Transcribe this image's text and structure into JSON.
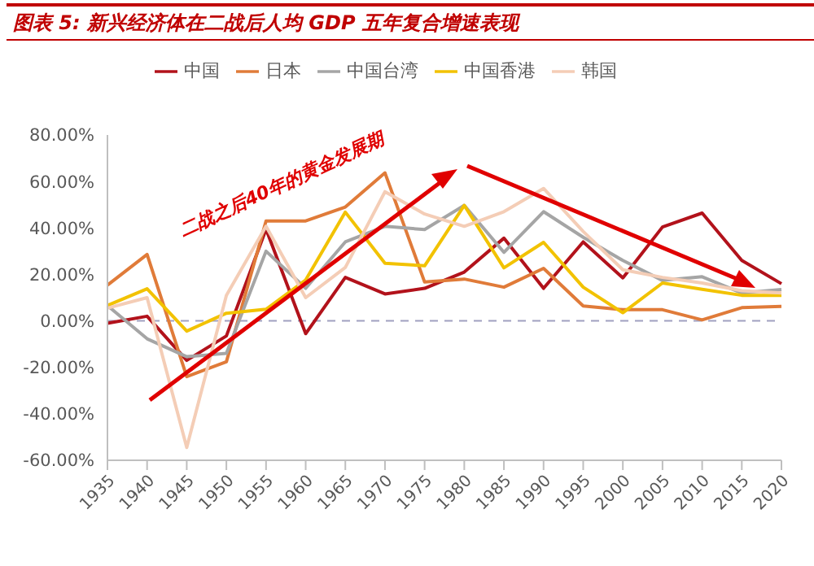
{
  "chart_data": {
    "type": "line",
    "title": "图表 5:  新兴经济体在二战后人均 GDP 五年复合增速表现",
    "categories": [
      "1935",
      "1940",
      "1945",
      "1950",
      "1955",
      "1960",
      "1965",
      "1970",
      "1975",
      "1980",
      "1985",
      "1990",
      "1995",
      "2000",
      "2005",
      "2010",
      "2015",
      "2020"
    ],
    "series": [
      {
        "name": "中国",
        "color": "#b2121b",
        "values": [
          -1,
          2,
          -17,
          -6.5,
          39.5,
          -5.5,
          18.7,
          11.6,
          14,
          21,
          35.6,
          14,
          34,
          18.5,
          40.4,
          46.4,
          26,
          16
        ]
      },
      {
        "name": "日本",
        "color": "#e07b39",
        "values": [
          15.4,
          28.6,
          -24,
          -17.6,
          43,
          43,
          49,
          63.7,
          16.7,
          18,
          14.5,
          22.6,
          6.4,
          4.8,
          4.8,
          0.4,
          5.7,
          6.2
        ]
      },
      {
        "name": "中国台湾",
        "color": "#a5a5a5",
        "values": [
          6.6,
          -7.7,
          -15.4,
          -14,
          30,
          14,
          34,
          40.7,
          39.3,
          49.7,
          29.5,
          47,
          36,
          26,
          17.4,
          19,
          12,
          13.5
        ]
      },
      {
        "name": "中国香港",
        "color": "#f2c200",
        "values": [
          6.6,
          13.8,
          -4.4,
          3.3,
          5,
          17.6,
          46.8,
          24.8,
          23.7,
          49.7,
          22.8,
          33.8,
          14.5,
          3.5,
          16.3,
          13.6,
          11,
          11
        ]
      },
      {
        "name": "韩国",
        "color": "#f4cdb6",
        "values": [
          5.5,
          10,
          -54.5,
          11,
          40.7,
          10,
          23,
          55.6,
          46,
          40.7,
          47,
          57,
          38.5,
          22,
          18.7,
          16.3,
          13,
          12
        ]
      }
    ],
    "ylim": [
      -60,
      80
    ],
    "yticks": [
      {
        "value": -60,
        "label": "-60.00%"
      },
      {
        "value": -40,
        "label": "-40.00%"
      },
      {
        "value": -20,
        "label": "-20.00%"
      },
      {
        "value": 0,
        "label": "0.00%"
      },
      {
        "value": 20,
        "label": "20.00%"
      },
      {
        "value": 40,
        "label": "40.00%"
      },
      {
        "value": 60,
        "label": "60.00%"
      },
      {
        "value": 80,
        "label": "80.00%"
      }
    ],
    "ref_lines": [
      {
        "axis": "y",
        "value": 0,
        "color": "#a0a0c0",
        "line_style": "dashed"
      }
    ],
    "annotations": [
      "二战之后40年的黄金发展期"
    ],
    "legend": "top",
    "grid": false,
    "marker": "none",
    "line_style": "solid"
  }
}
